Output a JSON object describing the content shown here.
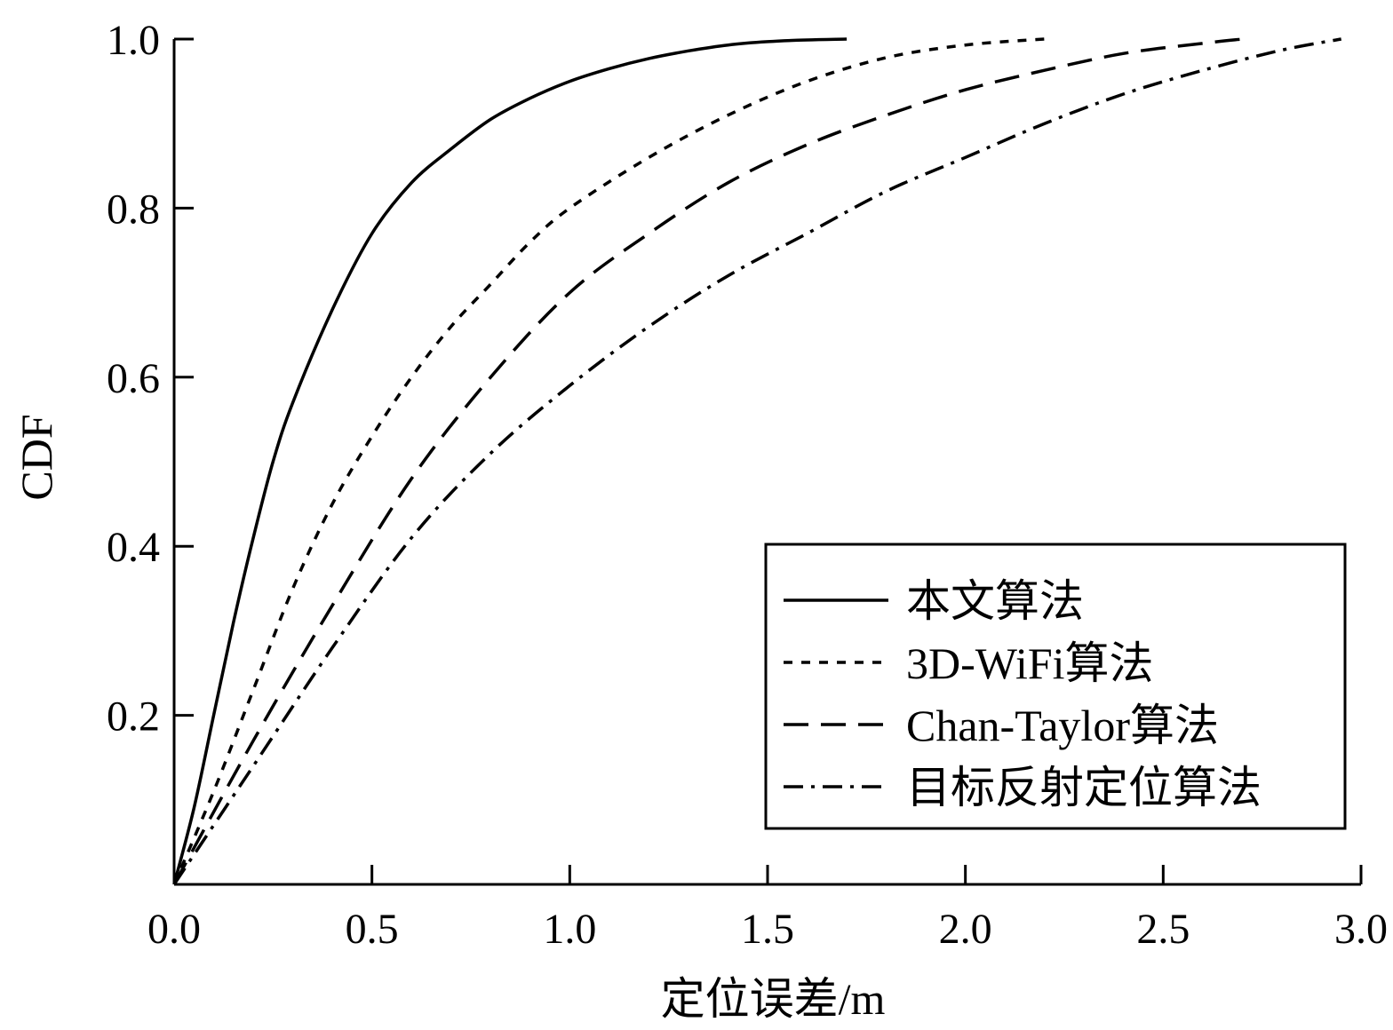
{
  "chart_data": {
    "type": "line",
    "xlabel": "定位误差/m",
    "ylabel": "CDF",
    "xlim": [
      0,
      3.0
    ],
    "ylim": [
      0,
      1.0
    ],
    "x_ticks": [
      "0.0",
      "0.5",
      "1.0",
      "1.5",
      "2.0",
      "2.5",
      "3.0"
    ],
    "y_ticks": [
      "0.2",
      "0.4",
      "0.6",
      "0.8",
      "1.0"
    ],
    "legend_position": "bottom-right",
    "grid": false,
    "series": [
      {
        "name": "本文算法",
        "dash": "solid",
        "x": [
          0,
          0.05,
          0.1,
          0.15,
          0.2,
          0.25,
          0.3,
          0.4,
          0.5,
          0.6,
          0.7,
          0.8,
          0.9,
          1.0,
          1.1,
          1.2,
          1.3,
          1.4,
          1.5,
          1.6,
          1.7
        ],
        "y": [
          0,
          0.09,
          0.2,
          0.31,
          0.41,
          0.5,
          0.57,
          0.68,
          0.77,
          0.83,
          0.87,
          0.905,
          0.93,
          0.95,
          0.965,
          0.977,
          0.986,
          0.993,
          0.997,
          0.999,
          1.0
        ]
      },
      {
        "name": "3D-WiFi算法",
        "dash": "dotted",
        "x": [
          0,
          0.1,
          0.2,
          0.3,
          0.4,
          0.5,
          0.6,
          0.7,
          0.8,
          0.9,
          1.0,
          1.2,
          1.4,
          1.6,
          1.8,
          2.0,
          2.2
        ],
        "y": [
          0,
          0.11,
          0.23,
          0.35,
          0.45,
          0.53,
          0.6,
          0.66,
          0.71,
          0.76,
          0.8,
          0.86,
          0.91,
          0.95,
          0.978,
          0.993,
          1.0
        ]
      },
      {
        "name": "Chan-Taylor算法",
        "dash": "dashed",
        "x": [
          0,
          0.2,
          0.4,
          0.6,
          0.8,
          1.0,
          1.2,
          1.4,
          1.6,
          1.8,
          2.0,
          2.2,
          2.4,
          2.6,
          2.7
        ],
        "y": [
          0,
          0.17,
          0.33,
          0.48,
          0.6,
          0.7,
          0.77,
          0.83,
          0.875,
          0.91,
          0.94,
          0.963,
          0.983,
          0.995,
          1.0
        ]
      },
      {
        "name": "目标反射定位算法",
        "dash": "dashdot",
        "x": [
          0,
          0.2,
          0.4,
          0.6,
          0.8,
          1.0,
          1.2,
          1.4,
          1.6,
          1.8,
          2.0,
          2.2,
          2.4,
          2.6,
          2.8,
          2.95
        ],
        "y": [
          0,
          0.14,
          0.28,
          0.41,
          0.51,
          0.59,
          0.66,
          0.72,
          0.77,
          0.82,
          0.86,
          0.9,
          0.935,
          0.963,
          0.987,
          1.0
        ]
      }
    ]
  }
}
